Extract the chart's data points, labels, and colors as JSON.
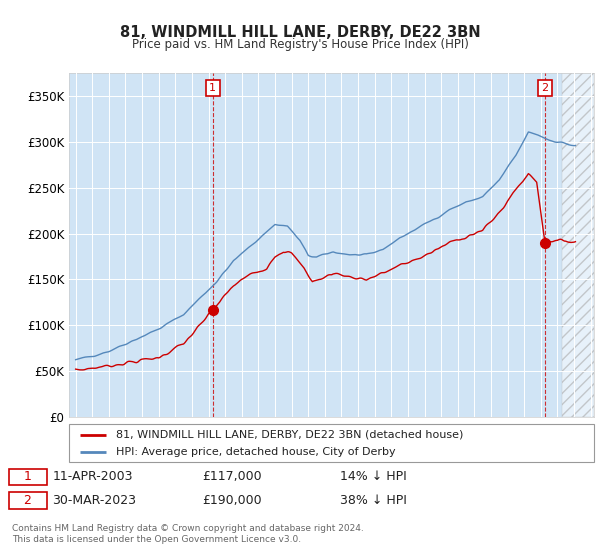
{
  "title": "81, WINDMILL HILL LANE, DERBY, DE22 3BN",
  "subtitle": "Price paid vs. HM Land Registry's House Price Index (HPI)",
  "legend_line1": "81, WINDMILL HILL LANE, DERBY, DE22 3BN (detached house)",
  "legend_line2": "HPI: Average price, detached house, City of Derby",
  "footnote1": "Contains HM Land Registry data © Crown copyright and database right 2024.",
  "footnote2": "This data is licensed under the Open Government Licence v3.0.",
  "annotation1_label": "1",
  "annotation1_date": "11-APR-2003",
  "annotation1_price": "£117,000",
  "annotation1_hpi": "14% ↓ HPI",
  "annotation2_label": "2",
  "annotation2_date": "30-MAR-2023",
  "annotation2_price": "£190,000",
  "annotation2_hpi": "38% ↓ HPI",
  "ylim": [
    0,
    375000
  ],
  "yticks": [
    0,
    50000,
    100000,
    150000,
    200000,
    250000,
    300000,
    350000
  ],
  "ytick_labels": [
    "£0",
    "£50K",
    "£100K",
    "£150K",
    "£200K",
    "£250K",
    "£300K",
    "£350K"
  ],
  "line_color_red": "#cc0000",
  "line_color_blue": "#5588bb",
  "fill_color_blue": "#d0e4f5",
  "background_color": "#ffffff",
  "grid_color": "#cccccc",
  "anno_box_color": "#cc0000",
  "sale1_year": 2003.25,
  "sale1_price": 117000,
  "sale2_year": 2023.25,
  "sale2_price": 190000,
  "xlim_left": 1994.6,
  "xlim_right": 2026.2
}
